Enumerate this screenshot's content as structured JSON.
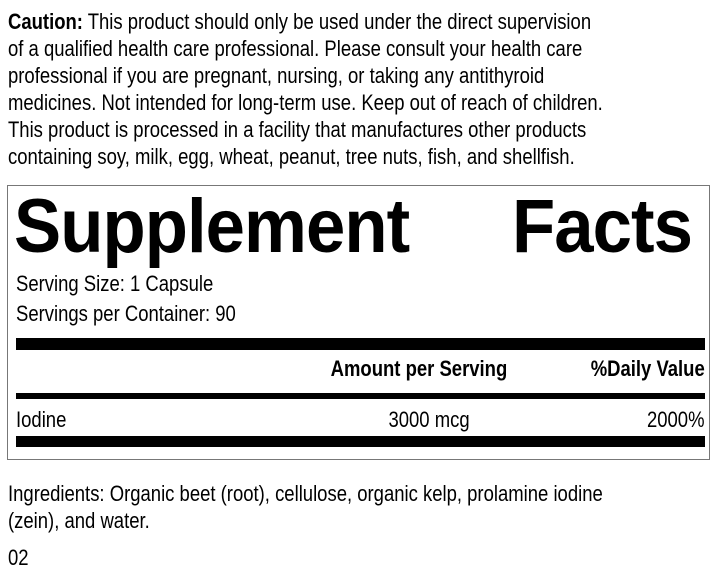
{
  "caution": {
    "label": "Caution:",
    "lines": [
      " This product should only be used under the direct supervision",
      "of a qualified health care professional. Please consult your health care",
      "professional if you are pregnant, nursing, or taking any antithyroid",
      "medicines. Not intended for long-term use. Keep out of reach of children.",
      "This product is processed in a facility that manufactures other products",
      "containing soy, milk, egg, wheat, peanut, tree nuts, fish, and shellfish."
    ]
  },
  "facts": {
    "title_left": "Supplement",
    "title_right": "Facts",
    "serving_size": "Serving Size: 1 Capsule",
    "servings_per_container": "Servings per Container: 90",
    "col_amount": "Amount per Serving",
    "col_dv": "%Daily Value",
    "rows": [
      {
        "name": "Iodine",
        "amount": "3000 mcg",
        "dv": "2000%"
      }
    ]
  },
  "ingredients": [
    "Ingredients: Organic beet (root), cellulose, organic kelp, prolamine iodine",
    "(zein), and water."
  ],
  "code": "02"
}
